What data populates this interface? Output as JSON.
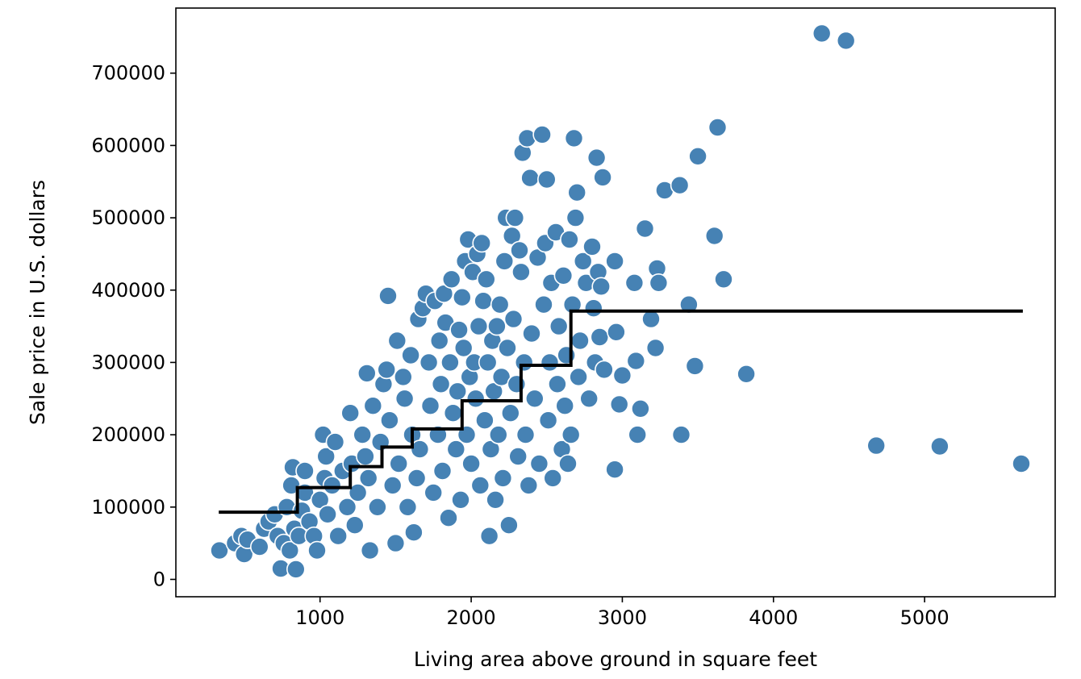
{
  "chart_data": {
    "type": "scatter",
    "title": "",
    "xlabel": "Living area above ground in square feet",
    "ylabel": "Sale price in U.S. dollars",
    "xlim": [
      46,
      5864
    ],
    "ylim": [
      -24000,
      790000
    ],
    "x_ticks": [
      1000,
      2000,
      3000,
      4000,
      5000
    ],
    "y_ticks": [
      0,
      100000,
      200000,
      300000,
      400000,
      500000,
      600000,
      700000
    ],
    "grid": false,
    "legend": "none",
    "colors": {
      "points": "#4682b4",
      "point_edge": "#ffffff",
      "step_line": "#000000"
    },
    "series": [
      {
        "kind": "scatter",
        "points": [
          [
            334,
            40000
          ],
          [
            438,
            50000
          ],
          [
            480,
            60000
          ],
          [
            498,
            35000
          ],
          [
            520,
            55000
          ],
          [
            600,
            45000
          ],
          [
            630,
            70000
          ],
          [
            660,
            80000
          ],
          [
            700,
            90000
          ],
          [
            720,
            60000
          ],
          [
            740,
            15000
          ],
          [
            760,
            50000
          ],
          [
            780,
            100000
          ],
          [
            800,
            40000
          ],
          [
            810,
            130000
          ],
          [
            820,
            155000
          ],
          [
            830,
            70000
          ],
          [
            840,
            14000
          ],
          [
            860,
            60000
          ],
          [
            880,
            95000
          ],
          [
            900,
            120000
          ],
          [
            900,
            150000
          ],
          [
            930,
            80000
          ],
          [
            960,
            60000
          ],
          [
            980,
            40000
          ],
          [
            1000,
            110000
          ],
          [
            1020,
            200000
          ],
          [
            1030,
            140000
          ],
          [
            1040,
            170000
          ],
          [
            1050,
            90000
          ],
          [
            1080,
            130000
          ],
          [
            1100,
            190000
          ],
          [
            1120,
            60000
          ],
          [
            1150,
            150000
          ],
          [
            1180,
            100000
          ],
          [
            1200,
            230000
          ],
          [
            1210,
            160000
          ],
          [
            1230,
            75000
          ],
          [
            1250,
            120000
          ],
          [
            1280,
            200000
          ],
          [
            1300,
            170000
          ],
          [
            1310,
            285000
          ],
          [
            1320,
            140000
          ],
          [
            1330,
            40000
          ],
          [
            1350,
            240000
          ],
          [
            1380,
            100000
          ],
          [
            1400,
            190000
          ],
          [
            1420,
            270000
          ],
          [
            1440,
            290000
          ],
          [
            1450,
            392000
          ],
          [
            1460,
            220000
          ],
          [
            1480,
            130000
          ],
          [
            1500,
            50000
          ],
          [
            1510,
            330000
          ],
          [
            1520,
            160000
          ],
          [
            1550,
            280000
          ],
          [
            1560,
            250000
          ],
          [
            1580,
            100000
          ],
          [
            1600,
            310000
          ],
          [
            1610,
            200000
          ],
          [
            1620,
            65000
          ],
          [
            1640,
            140000
          ],
          [
            1650,
            360000
          ],
          [
            1660,
            180000
          ],
          [
            1680,
            375000
          ],
          [
            1700,
            395000
          ],
          [
            1720,
            300000
          ],
          [
            1730,
            240000
          ],
          [
            1750,
            120000
          ],
          [
            1760,
            385000
          ],
          [
            1780,
            200000
          ],
          [
            1790,
            330000
          ],
          [
            1800,
            270000
          ],
          [
            1810,
            150000
          ],
          [
            1820,
            395000
          ],
          [
            1830,
            355000
          ],
          [
            1850,
            85000
          ],
          [
            1860,
            300000
          ],
          [
            1870,
            415000
          ],
          [
            1880,
            230000
          ],
          [
            1900,
            180000
          ],
          [
            1910,
            260000
          ],
          [
            1920,
            345000
          ],
          [
            1930,
            110000
          ],
          [
            1940,
            390000
          ],
          [
            1950,
            320000
          ],
          [
            1960,
            440000
          ],
          [
            1970,
            200000
          ],
          [
            1980,
            470000
          ],
          [
            1990,
            280000
          ],
          [
            2000,
            160000
          ],
          [
            2010,
            425000
          ],
          [
            2020,
            300000
          ],
          [
            2030,
            250000
          ],
          [
            2040,
            450000
          ],
          [
            2050,
            350000
          ],
          [
            2060,
            130000
          ],
          [
            2070,
            465000
          ],
          [
            2080,
            385000
          ],
          [
            2090,
            220000
          ],
          [
            2100,
            415000
          ],
          [
            2110,
            300000
          ],
          [
            2120,
            60000
          ],
          [
            2130,
            180000
          ],
          [
            2140,
            330000
          ],
          [
            2150,
            260000
          ],
          [
            2160,
            110000
          ],
          [
            2170,
            350000
          ],
          [
            2180,
            200000
          ],
          [
            2190,
            380000
          ],
          [
            2200,
            280000
          ],
          [
            2210,
            140000
          ],
          [
            2220,
            440000
          ],
          [
            2230,
            500000
          ],
          [
            2240,
            320000
          ],
          [
            2250,
            75000
          ],
          [
            2260,
            230000
          ],
          [
            2270,
            475000
          ],
          [
            2280,
            360000
          ],
          [
            2290,
            500000
          ],
          [
            2300,
            270000
          ],
          [
            2310,
            170000
          ],
          [
            2320,
            455000
          ],
          [
            2330,
            425000
          ],
          [
            2340,
            590000
          ],
          [
            2350,
            300000
          ],
          [
            2360,
            200000
          ],
          [
            2370,
            610000
          ],
          [
            2380,
            130000
          ],
          [
            2390,
            555000
          ],
          [
            2400,
            340000
          ],
          [
            2420,
            250000
          ],
          [
            2440,
            445000
          ],
          [
            2450,
            160000
          ],
          [
            2470,
            615000
          ],
          [
            2480,
            380000
          ],
          [
            2490,
            465000
          ],
          [
            2500,
            553000
          ],
          [
            2510,
            220000
          ],
          [
            2520,
            300000
          ],
          [
            2530,
            410000
          ],
          [
            2540,
            140000
          ],
          [
            2560,
            480000
          ],
          [
            2570,
            270000
          ],
          [
            2580,
            350000
          ],
          [
            2600,
            180000
          ],
          [
            2610,
            420000
          ],
          [
            2620,
            240000
          ],
          [
            2630,
            310000
          ],
          [
            2640,
            160000
          ],
          [
            2650,
            470000
          ],
          [
            2660,
            200000
          ],
          [
            2670,
            380000
          ],
          [
            2680,
            610000
          ],
          [
            2690,
            500000
          ],
          [
            2700,
            535000
          ],
          [
            2710,
            280000
          ],
          [
            2720,
            330000
          ],
          [
            2740,
            440000
          ],
          [
            2760,
            410000
          ],
          [
            2780,
            250000
          ],
          [
            2800,
            460000
          ],
          [
            2810,
            375000
          ],
          [
            2820,
            300000
          ],
          [
            2830,
            583000
          ],
          [
            2840,
            425000
          ],
          [
            2850,
            335000
          ],
          [
            2860,
            405000
          ],
          [
            2870,
            556000
          ],
          [
            2880,
            290000
          ],
          [
            2950,
            440000
          ],
          [
            2950,
            152000
          ],
          [
            2960,
            342000
          ],
          [
            2980,
            242000
          ],
          [
            3000,
            282000
          ],
          [
            3080,
            410000
          ],
          [
            3090,
            302000
          ],
          [
            3100,
            200000
          ],
          [
            3120,
            236000
          ],
          [
            3150,
            485000
          ],
          [
            3190,
            360000
          ],
          [
            3220,
            320000
          ],
          [
            3230,
            430000
          ],
          [
            3240,
            410000
          ],
          [
            3280,
            538000
          ],
          [
            3380,
            545000
          ],
          [
            3390,
            200000
          ],
          [
            3440,
            380000
          ],
          [
            3480,
            295000
          ],
          [
            3500,
            585000
          ],
          [
            3610,
            475000
          ],
          [
            3630,
            625000
          ],
          [
            3670,
            415000
          ],
          [
            3820,
            284000
          ],
          [
            4320,
            755000
          ],
          [
            4480,
            745000
          ],
          [
            4680,
            185000
          ],
          [
            5100,
            184000
          ],
          [
            5640,
            160000
          ]
        ]
      },
      {
        "kind": "step",
        "breaks": [
          330,
          850,
          1200,
          1410,
          1610,
          1940,
          2330,
          2660,
          5650
        ],
        "levels": [
          93000,
          127000,
          156000,
          183000,
          208000,
          247000,
          296000,
          371000
        ]
      }
    ]
  }
}
